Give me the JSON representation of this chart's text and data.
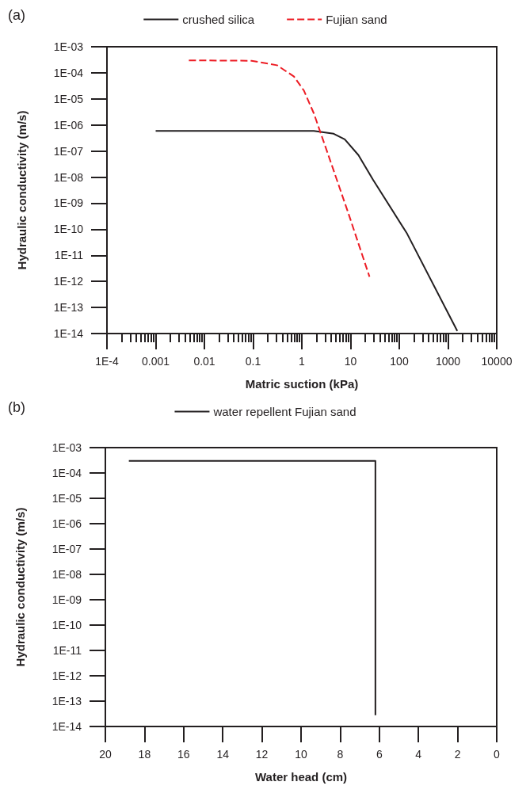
{
  "chart_data": [
    {
      "type": "line",
      "annotations": [
        "(a)"
      ],
      "xlabel": "Matric suction (kPa)",
      "ylabel": "Hydraulic conductivity (m/s)",
      "log": "xy",
      "grid": false,
      "legend": "top",
      "marker": "none",
      "xlim": [
        0.0001,
        10000
      ],
      "ylim": [
        1e-14,
        0.001
      ],
      "xticks": [
        {
          "value": 0.0001,
          "label": "1E-4"
        },
        0.001,
        0.01,
        0.1,
        1,
        10,
        100,
        1000,
        10000,
        {
          "value": 0.0002,
          "label": null
        },
        {
          "value": 0.0003,
          "label": null
        },
        {
          "value": 0.0004,
          "label": null
        },
        {
          "value": 0.0005,
          "label": null
        },
        {
          "value": 0.0006,
          "label": null
        },
        {
          "value": 0.0007,
          "label": null
        },
        {
          "value": 0.0008,
          "label": null
        },
        {
          "value": 0.0009,
          "label": null
        },
        {
          "value": 0.002,
          "label": null
        },
        {
          "value": 0.003,
          "label": null
        },
        {
          "value": 0.004,
          "label": null
        },
        {
          "value": 0.005,
          "label": null
        },
        {
          "value": 0.006,
          "label": null
        },
        {
          "value": 0.007,
          "label": null
        },
        {
          "value": 0.008,
          "label": null
        },
        {
          "value": 0.009,
          "label": null
        },
        {
          "value": 0.02,
          "label": null
        },
        {
          "value": 0.03,
          "label": null
        },
        {
          "value": 0.04,
          "label": null
        },
        {
          "value": 0.05,
          "label": null
        },
        {
          "value": 0.06,
          "label": null
        },
        {
          "value": 0.07,
          "label": null
        },
        {
          "value": 0.08,
          "label": null
        },
        {
          "value": 0.09,
          "label": null
        },
        {
          "value": 0.2,
          "label": null
        },
        {
          "value": 0.3,
          "label": null
        },
        {
          "value": 0.4,
          "label": null
        },
        {
          "value": 0.5,
          "label": null
        },
        {
          "value": 0.6,
          "label": null
        },
        {
          "value": 0.7,
          "label": null
        },
        {
          "value": 0.8,
          "label": null
        },
        {
          "value": 0.9,
          "label": null
        },
        {
          "value": 2,
          "label": null
        },
        {
          "value": 3,
          "label": null
        },
        {
          "value": 4,
          "label": null
        },
        {
          "value": 5,
          "label": null
        },
        {
          "value": 6,
          "label": null
        },
        {
          "value": 7,
          "label": null
        },
        {
          "value": 8,
          "label": null
        },
        {
          "value": 9,
          "label": null
        },
        {
          "value": 20,
          "label": null
        },
        {
          "value": 30,
          "label": null
        },
        {
          "value": 40,
          "label": null
        },
        {
          "value": 50,
          "label": null
        },
        {
          "value": 60,
          "label": null
        },
        {
          "value": 70,
          "label": null
        },
        {
          "value": 80,
          "label": null
        },
        {
          "value": 90,
          "label": null
        },
        {
          "value": 200,
          "label": null
        },
        {
          "value": 300,
          "label": null
        },
        {
          "value": 400,
          "label": null
        },
        {
          "value": 500,
          "label": null
        },
        {
          "value": 600,
          "label": null
        },
        {
          "value": 700,
          "label": null
        },
        {
          "value": 800,
          "label": null
        },
        {
          "value": 900,
          "label": null
        },
        {
          "value": 2000,
          "label": null
        },
        {
          "value": 3000,
          "label": null
        },
        {
          "value": 4000,
          "label": null
        },
        {
          "value": 5000,
          "label": null
        },
        {
          "value": 6000,
          "label": null
        },
        {
          "value": 7000,
          "label": null
        },
        {
          "value": 8000,
          "label": null
        },
        {
          "value": 9000,
          "label": null
        }
      ],
      "yticks": [
        {
          "value": 1e-14,
          "label": "1E-14"
        },
        {
          "value": 1e-13,
          "label": "1E-13"
        },
        {
          "value": 1e-12,
          "label": "1E-12"
        },
        {
          "value": 1e-11,
          "label": "1E-11"
        },
        {
          "value": 1e-10,
          "label": "1E-10"
        },
        {
          "value": 1e-09,
          "label": "1E-09"
        },
        {
          "value": 1e-08,
          "label": "1E-08"
        },
        {
          "value": 1e-07,
          "label": "1E-07"
        },
        {
          "value": 1e-06,
          "label": "1E-06"
        },
        {
          "value": 1e-05,
          "label": "1E-05"
        },
        {
          "value": 0.0001,
          "label": "1E-04"
        },
        {
          "value": 0.001,
          "label": "1E-03"
        }
      ],
      "series": [
        {
          "name": "crushed silica",
          "color": "#231f20",
          "line_style": "solid",
          "x": [
            0.001,
            1.76,
            4.5,
            7.6,
            14.5,
            29,
            145,
            1550
          ],
          "values": [
            5.9e-07,
            5.9e-07,
            4.6e-07,
            2.8e-07,
            7e-08,
            7.9e-09,
            6.7e-11,
            1.26e-14
          ]
        },
        {
          "name": "Fujian sand",
          "color": "#ed1c24",
          "line_style": "dashed",
          "x": [
            0.0048,
            0.093,
            0.31,
            0.69,
            1.1,
            1.76,
            3.0,
            8.7,
            24.5
          ],
          "values": [
            0.0003,
            0.00029,
            0.000195,
            7.2e-05,
            2.1e-05,
            2.8e-06,
            1.6e-07,
            5e-10,
            1.5e-12
          ]
        }
      ]
    },
    {
      "type": "line",
      "annotations": [
        "(b)"
      ],
      "xlabel": "Water head (cm)",
      "ylabel": "Hydraulic conductivity (m/s)",
      "log": "y",
      "grid": false,
      "legend": "top",
      "marker": "none",
      "xlim": [
        20,
        0
      ],
      "ylim": [
        1e-14,
        0.001
      ],
      "xticks": [
        20,
        18,
        16,
        14,
        12,
        10,
        8,
        6,
        4,
        2,
        0
      ],
      "yticks": [
        {
          "value": 1e-14,
          "label": "1E-14"
        },
        {
          "value": 1e-13,
          "label": "1E-13"
        },
        {
          "value": 1e-12,
          "label": "1E-12"
        },
        {
          "value": 1e-11,
          "label": "1E-11"
        },
        {
          "value": 1e-10,
          "label": "1E-10"
        },
        {
          "value": 1e-09,
          "label": "1E-09"
        },
        {
          "value": 1e-08,
          "label": "1E-08"
        },
        {
          "value": 1e-07,
          "label": "1E-07"
        },
        {
          "value": 1e-06,
          "label": "1E-06"
        },
        {
          "value": 1e-05,
          "label": "1E-05"
        },
        {
          "value": 0.0001,
          "label": "1E-04"
        },
        {
          "value": 0.001,
          "label": "1E-03"
        }
      ],
      "series": [
        {
          "name": "water repellent Fujian sand",
          "color": "#231f20",
          "line_style": "solid",
          "x": [
            18.8,
            6.2,
            6.2
          ],
          "values": [
            0.0003,
            0.0003,
            2.8e-14
          ]
        }
      ]
    }
  ]
}
